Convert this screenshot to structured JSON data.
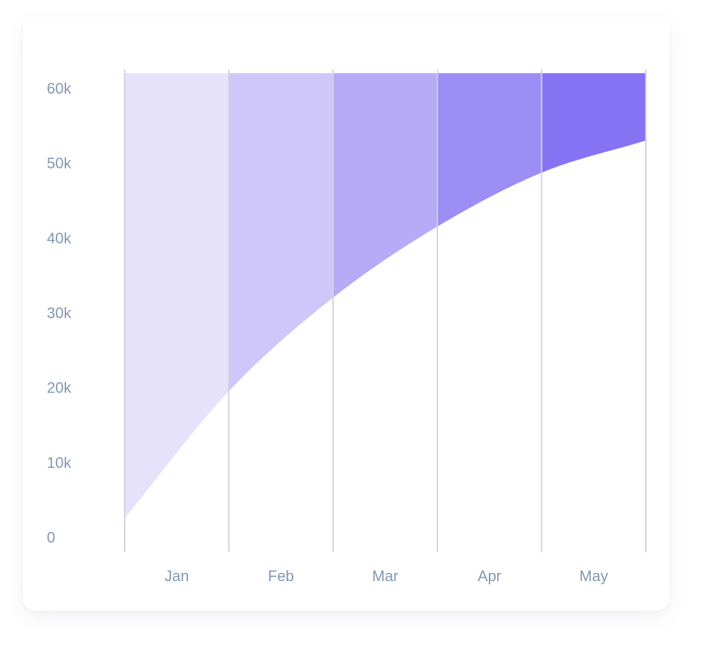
{
  "chart_data": {
    "type": "area",
    "title": "",
    "xlabel": "",
    "ylabel": "",
    "categories": [
      "Jan",
      "Feb",
      "Mar",
      "Apr",
      "May"
    ],
    "x_boundaries": [
      0,
      1,
      2,
      3,
      4,
      5
    ],
    "curve_values": [
      2500,
      19500,
      32000,
      41500,
      48700,
      53000
    ],
    "top_value": 62000,
    "y_ticks": [
      {
        "value": 0,
        "label": "0"
      },
      {
        "value": 10000,
        "label": "10k"
      },
      {
        "value": 20000,
        "label": "20k"
      },
      {
        "value": 30000,
        "label": "30k"
      },
      {
        "value": 40000,
        "label": "40k"
      },
      {
        "value": 50000,
        "label": "50k"
      },
      {
        "value": 60000,
        "label": "60k"
      }
    ],
    "ylim": [
      0,
      62000
    ],
    "grid": "vertical",
    "band_colors": [
      "#e6e2fb",
      "#cfc7f9",
      "#b7abf7",
      "#9d8ef5",
      "#8673f3"
    ],
    "gridline_color": "#cfd3da",
    "tick_label_color": "#8597b3"
  }
}
